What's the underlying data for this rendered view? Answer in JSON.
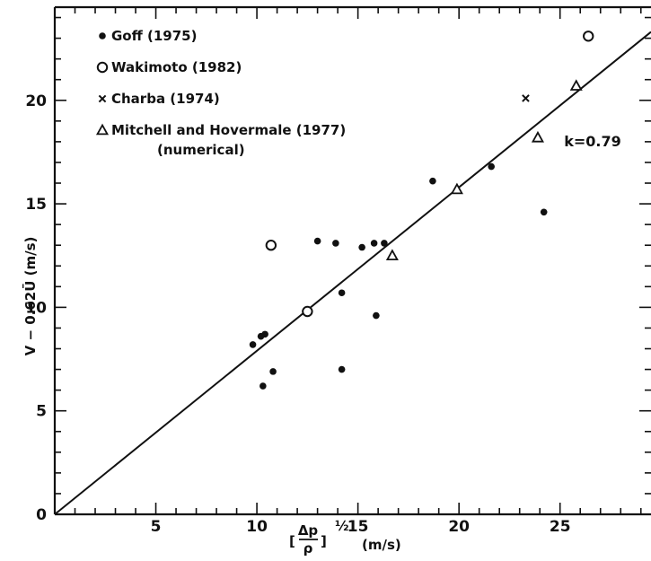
{
  "chart_data": {
    "type": "scatter",
    "xlim": [
      0,
      29.5
    ],
    "ylim": [
      0,
      24.5
    ],
    "x_ticks": [
      0,
      5,
      10,
      15,
      20,
      25
    ],
    "y_ticks": [
      0,
      5,
      10,
      15,
      20
    ],
    "x_tick_labels": [
      "5",
      "10",
      "15",
      "20",
      "25"
    ],
    "y_tick_labels": [
      "0",
      "5",
      "10",
      "15",
      "20"
    ],
    "xlabel": {
      "lhs_num": "Δp",
      "lhs_den": "ρ",
      "exponent": "½",
      "units": "(m/s)"
    },
    "ylabel": "V − 0.62Ū  (m/s)",
    "annotation": "k=0.79",
    "grid": false,
    "legend_position": "top-left",
    "series": [
      {
        "name": "Goff (1975)",
        "marker": "filled-circle",
        "points": [
          [
            9.8,
            8.2
          ],
          [
            10.2,
            8.6
          ],
          [
            10.4,
            8.7
          ],
          [
            10.3,
            6.2
          ],
          [
            10.8,
            6.9
          ],
          [
            13.0,
            13.2
          ],
          [
            13.9,
            13.1
          ],
          [
            14.2,
            10.7
          ],
          [
            14.2,
            7.0
          ],
          [
            15.2,
            12.9
          ],
          [
            15.8,
            13.1
          ],
          [
            15.9,
            9.6
          ],
          [
            16.3,
            13.1
          ],
          [
            18.7,
            16.1
          ],
          [
            21.6,
            16.8
          ],
          [
            24.2,
            14.6
          ]
        ]
      },
      {
        "name": "Wakimoto (1982)",
        "marker": "open-circle",
        "points": [
          [
            10.7,
            13.0
          ],
          [
            12.5,
            9.8
          ],
          [
            26.4,
            23.1
          ]
        ]
      },
      {
        "name": "Charba (1974)",
        "marker": "cross",
        "points": [
          [
            23.3,
            20.1
          ]
        ]
      },
      {
        "name": "Mitchell and Hovermale (1977)",
        "name_line2": "(numerical)",
        "marker": "triangle",
        "points": [
          [
            16.7,
            12.5
          ],
          [
            19.9,
            15.7
          ],
          [
            23.9,
            18.2
          ],
          [
            25.8,
            20.7
          ]
        ]
      }
    ],
    "fit_line": {
      "slope": 0.79,
      "intercept": 0,
      "x_range": [
        0,
        29.5
      ]
    }
  }
}
